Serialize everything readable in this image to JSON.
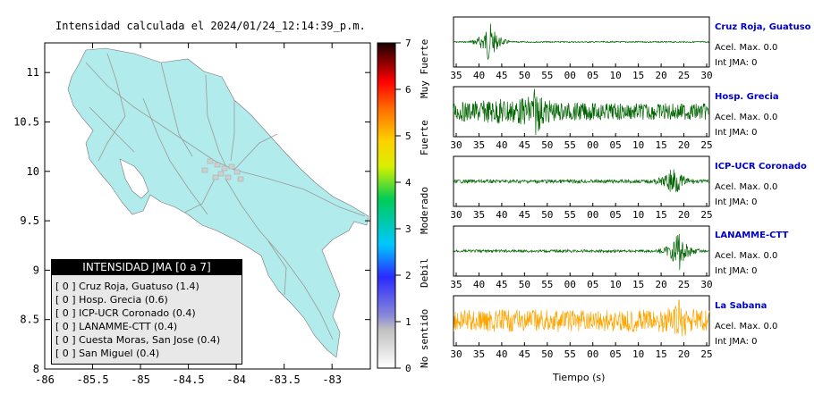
{
  "map": {
    "title": "Intensidad calculada el 2024/01/24_12:14:39_p.m.",
    "x_ticks": [
      "-86",
      "-85.5",
      "-85",
      "-84.5",
      "-84",
      "-83.5",
      "-83"
    ],
    "y_ticks": [
      "11",
      "10.5",
      "10",
      "9.5",
      "9",
      "8.5",
      "8"
    ]
  },
  "scale": {
    "ticks": [
      "7",
      "6",
      "5",
      "4",
      "3",
      "2",
      "1",
      "0"
    ],
    "labels": [
      "Muy Fuerte",
      "Fuerte",
      "Moderado",
      "Debil",
      "No sentido"
    ]
  },
  "legend": {
    "title": "INTENSIDAD JMA [0 a 7]",
    "rows": [
      "[ 0 ]  Cruz Roja, Guatuso (1.4)",
      "[ 0 ]  Hosp. Grecia (0.6)",
      "[ 0 ]  ICP-UCR Coronado (0.4)",
      "[ 0 ]  LANAMME-CTT (0.4)",
      "[ 0 ]  Cuesta Moras, San Jose (0.4)",
      "[ 0 ]  San Miguel (0.4)"
    ]
  },
  "chart_data": [
    {
      "type": "heatmap",
      "title": "Intensidad calculada el 2024/01/24_12:14:39_p.m.",
      "xlim": [
        -86,
        -82.6
      ],
      "ylim": [
        8,
        11.3
      ],
      "colorbar": {
        "min": 0,
        "max": 7,
        "labels": [
          "No sentido",
          "Debil",
          "Moderado",
          "Fuerte",
          "Muy Fuerte"
        ]
      },
      "legend_title": "INTENSIDAD JMA [0 a 7]",
      "stations": [
        {
          "name": "Cruz Roja, Guatuso",
          "jma_class": 0,
          "intensity": 1.4
        },
        {
          "name": "Hosp. Grecia",
          "jma_class": 0,
          "intensity": 0.6
        },
        {
          "name": "ICP-UCR Coronado",
          "jma_class": 0,
          "intensity": 0.4
        },
        {
          "name": "LANAMME-CTT",
          "jma_class": 0,
          "intensity": 0.4
        },
        {
          "name": "Cuesta Moras, San Jose",
          "jma_class": 0,
          "intensity": 0.4
        },
        {
          "name": "San Miguel",
          "jma_class": 0,
          "intensity": 0.4
        }
      ]
    },
    {
      "type": "line",
      "xlabel": "Tiempo (s)",
      "series": [
        {
          "name": "Cruz Roja, Guatuso",
          "color": "#006400",
          "x_ticks": [
            "35",
            "40",
            "45",
            "50",
            "55",
            "00",
            "05",
            "10",
            "15",
            "20",
            "25",
            "30"
          ],
          "burst_at": "40"
        },
        {
          "name": "Hosp. Grecia",
          "color": "#006400",
          "x_ticks": [
            "30",
            "35",
            "40",
            "45",
            "50",
            "55",
            "00",
            "05",
            "10",
            "15",
            "20",
            "25"
          ],
          "burst_at": "48"
        },
        {
          "name": "ICP-UCR Coronado",
          "color": "#006400",
          "x_ticks": [
            "30",
            "35",
            "40",
            "45",
            "50",
            "55",
            "00",
            "05",
            "10",
            "15",
            "20",
            "25"
          ],
          "burst_at": "22"
        },
        {
          "name": "LANAMME-CTT",
          "color": "#006400",
          "x_ticks": [
            "35",
            "40",
            "45",
            "50",
            "55",
            "00",
            "05",
            "10",
            "15",
            "20",
            "25",
            "30"
          ],
          "burst_at": "25"
        },
        {
          "name": "La Sabana",
          "color": "#FFA500",
          "x_ticks": [
            "30",
            "35",
            "40",
            "45",
            "50",
            "55",
            "00",
            "05",
            "10",
            "15",
            "20",
            "25"
          ],
          "burst_at": "24"
        }
      ]
    }
  ],
  "stations_panel": [
    {
      "name": "Cruz Roja, Guatuso",
      "acel": "Acel. Max. 0.0",
      "int": "Int JMA: 0"
    },
    {
      "name": "Hosp. Grecia",
      "acel": "Acel. Max. 0.0",
      "int": "Int JMA: 0"
    },
    {
      "name": "ICP-UCR Coronado",
      "acel": "Acel. Max. 0.0",
      "int": "Int JMA: 0"
    },
    {
      "name": "LANAMME-CTT",
      "acel": "Acel. Max. 0.0",
      "int": "Int JMA: 0"
    },
    {
      "name": "La Sabana",
      "acel": "Acel. Max. 0.0",
      "int": "Int JMA: 0"
    }
  ],
  "time_label": "Tiempo (s)",
  "colors": {
    "land": "#b2ebeb",
    "roads": "#9a9a9a",
    "green_trace": "#006400",
    "orange_trace": "#FFA500",
    "station_name": "#0000cc"
  }
}
